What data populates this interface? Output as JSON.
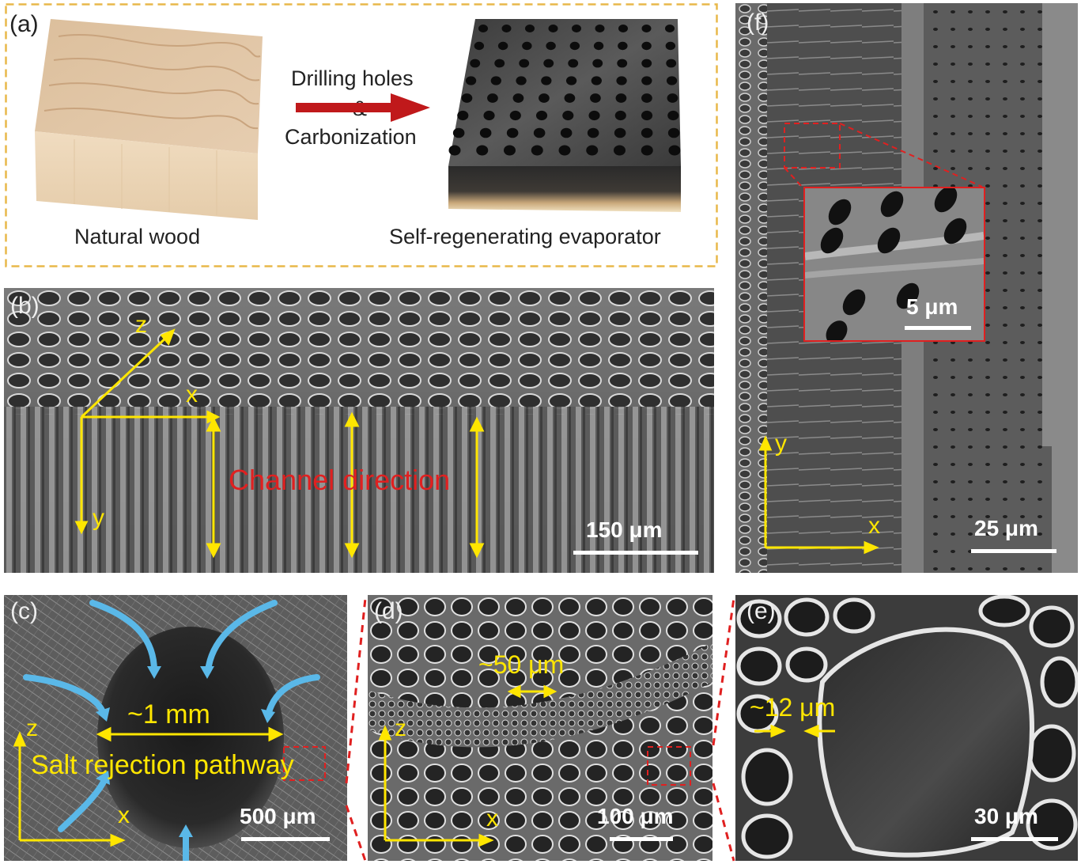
{
  "panel_a": {
    "label": "(a)",
    "arrow_text_line1": "Drilling holes",
    "arrow_text_line2": "&",
    "arrow_text_line3": "Carbonization",
    "caption_left": "Natural wood",
    "caption_right": "Self-regenerating evaporator",
    "frame_color": "#e8b84a",
    "arrow_color": "#c0191b"
  },
  "panel_b": {
    "label": "(b)",
    "axis_z": "z",
    "axis_x": "x",
    "axis_y": "y",
    "annotation": "Channel direction",
    "scale": "150 μm"
  },
  "panel_c": {
    "label": "(c)",
    "size": "~1 mm",
    "annotation": "Salt rejection pathway",
    "axis_z": "z",
    "axis_x": "x",
    "scale": "500 μm"
  },
  "panel_d": {
    "label": "(d)",
    "size": "~50 μm",
    "axis_z": "z",
    "axis_x": "x",
    "scale": "100 μm"
  },
  "panel_e": {
    "label": "(e)",
    "size": "~12 μm",
    "scale": "30 μm"
  },
  "panel_f": {
    "label": "(f)",
    "inset_scale": "5 μm",
    "axis_y": "y",
    "axis_x": "x",
    "scale": "25 μm"
  },
  "colors": {
    "annotation_yellow": "#ffe600",
    "annotation_red": "#e02020",
    "flow_blue": "#5ab8e8",
    "dashed_red": "#e02020"
  }
}
